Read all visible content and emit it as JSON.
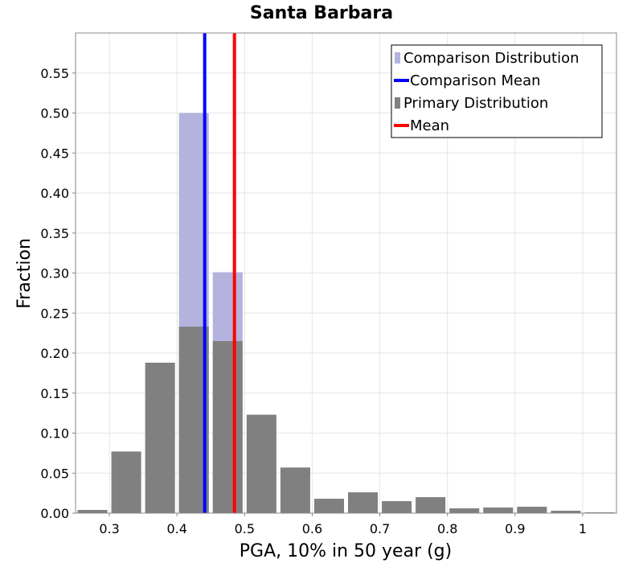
{
  "chart_data": {
    "type": "bar",
    "title": "Santa Barbara",
    "xlabel": "PGA, 10% in 50 year (g)",
    "ylabel": "Fraction",
    "xlim": [
      0.25,
      1.05
    ],
    "ylim": [
      0,
      0.6
    ],
    "bin_width": 0.05,
    "x_ticks": [
      "0.3",
      "0.4",
      "0.5",
      "0.6",
      "0.7",
      "0.8",
      "0.9",
      "1"
    ],
    "y_ticks": [
      "0.00",
      "0.05",
      "0.10",
      "0.15",
      "0.20",
      "0.25",
      "0.30",
      "0.35",
      "0.40",
      "0.45",
      "0.50",
      "0.55"
    ],
    "grid": true,
    "legend_position": "top-right",
    "colors": {
      "comparison_distribution": "#b3b3de",
      "comparison_mean": "#0000ff",
      "primary_distribution": "#808080",
      "mean": "#ff0000"
    },
    "series": [
      {
        "name": "Comparison Distribution",
        "x": [
          0.425,
          0.475
        ],
        "values": [
          0.5,
          0.301
        ]
      },
      {
        "name": "Primary Distribution",
        "x": [
          0.275,
          0.325,
          0.375,
          0.425,
          0.475,
          0.525,
          0.575,
          0.625,
          0.675,
          0.725,
          0.775,
          0.825,
          0.875,
          0.925,
          0.975,
          1.025
        ],
        "values": [
          0.004,
          0.077,
          0.188,
          0.233,
          0.215,
          0.123,
          0.057,
          0.018,
          0.026,
          0.015,
          0.02,
          0.006,
          0.007,
          0.008,
          0.003,
          0.001
        ]
      }
    ],
    "lines": [
      {
        "name": "Comparison Mean",
        "x": 0.441
      },
      {
        "name": "Mean",
        "x": 0.485
      }
    ]
  }
}
